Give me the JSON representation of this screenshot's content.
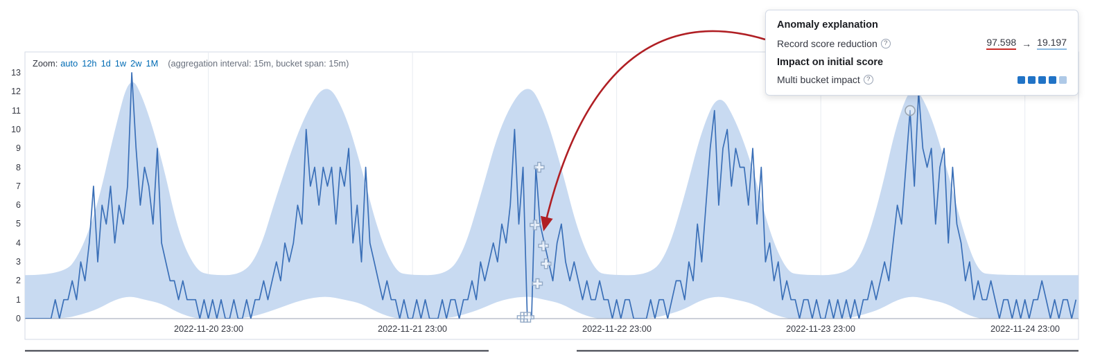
{
  "toolbar": {
    "zoom_label": "Zoom:",
    "zoom_options": [
      "auto",
      "12h",
      "1d",
      "1w",
      "2w",
      "1M"
    ],
    "aggregation_note": "(aggregation interval: 15m, bucket span: 15m)",
    "link_color": "#006bb4"
  },
  "popup": {
    "title": "Anomaly explanation",
    "help_glyph": "?",
    "record_score": {
      "label": "Record score reduction",
      "from": "97.598",
      "arrow": "→",
      "to": "19.197",
      "from_underline_color": "#ca2b27",
      "to_underline_color": "#8bbbe3"
    },
    "impact_title": "Impact on initial score",
    "multi_bucket": {
      "label": "Multi bucket impact",
      "filled": 4,
      "total": 5,
      "filled_color": "#2173c6",
      "empty_color": "#aec9e7"
    }
  },
  "chart_data": {
    "type": "line",
    "title": "",
    "xlabel": "",
    "ylabel": "",
    "ylim": [
      0,
      13
    ],
    "grid": "vertical",
    "legend": "none",
    "y_ticks": [
      0,
      1,
      2,
      3,
      4,
      5,
      6,
      7,
      8,
      9,
      10,
      11,
      12,
      13
    ],
    "x_ticks": [
      {
        "hour": 22,
        "label": "2022-11-20 23:00"
      },
      {
        "hour": 46,
        "label": "2022-11-21 23:00"
      },
      {
        "hour": 70,
        "label": "2022-11-22 23:00"
      },
      {
        "hour": 94,
        "label": "2022-11-23 23:00"
      },
      {
        "hour": 118,
        "label": "2022-11-24 23:00"
      }
    ],
    "x_domain_hours": [
      0.44,
      124.3
    ],
    "series": [
      {
        "name": "actual",
        "type": "line",
        "color": "#3a6fb7",
        "start_hour": 0.5,
        "interval_hours": 0.5,
        "values": [
          0,
          0,
          0,
          0,
          0,
          0,
          0,
          1,
          0,
          1,
          1,
          2,
          1,
          3,
          2,
          4,
          7,
          3,
          6,
          5,
          7,
          4,
          6,
          5,
          7,
          13,
          9,
          6,
          8,
          7,
          5,
          9,
          4,
          3,
          2,
          2,
          1,
          2,
          1,
          1,
          1,
          0,
          1,
          0,
          1,
          0,
          1,
          0,
          0,
          1,
          0,
          0,
          1,
          0,
          1,
          1,
          2,
          1,
          2,
          3,
          2,
          4,
          3,
          4,
          6,
          5,
          10,
          7,
          8,
          6,
          8,
          7,
          8,
          5,
          8,
          7,
          9,
          4,
          6,
          3,
          8,
          4,
          3,
          2,
          1,
          2,
          1,
          1,
          0,
          1,
          0,
          0,
          1,
          0,
          1,
          0,
          0,
          0,
          1,
          0,
          1,
          1,
          0,
          1,
          1,
          2,
          1,
          3,
          2,
          3,
          4,
          3,
          5,
          4,
          6,
          10,
          5,
          8,
          0,
          0,
          8,
          5,
          4,
          3,
          2,
          4,
          5,
          3,
          2,
          3,
          2,
          1,
          2,
          1,
          1,
          2,
          1,
          1,
          0,
          1,
          0,
          1,
          1,
          0,
          0,
          0,
          0,
          1,
          0,
          1,
          1,
          0,
          1,
          2,
          2,
          1,
          3,
          2,
          5,
          3,
          6,
          9,
          11,
          6,
          9,
          10,
          7,
          9,
          8,
          8,
          6,
          9,
          5,
          8,
          3,
          4,
          2,
          3,
          1,
          2,
          1,
          1,
          0,
          1,
          1,
          0,
          1,
          0,
          0,
          1,
          0,
          1,
          0,
          1,
          0,
          1,
          0,
          1,
          1,
          2,
          1,
          2,
          3,
          2,
          4,
          6,
          5,
          8,
          11,
          7,
          12,
          9,
          8,
          9,
          5,
          8,
          9,
          4,
          8,
          5,
          4,
          2,
          3,
          1,
          2,
          1,
          1,
          2,
          1,
          0,
          1,
          1,
          0,
          1,
          0,
          1,
          0,
          1,
          1,
          2,
          1,
          0,
          1,
          0,
          1,
          1,
          0,
          1,
          2
        ]
      },
      {
        "name": "model-bounds",
        "type": "band",
        "fill": "#c8daf1",
        "anchors": [
          [
            0.44,
            0,
            2.3
          ],
          [
            5,
            0,
            2.3
          ],
          [
            7,
            0.2,
            3.5
          ],
          [
            9,
            0.5,
            6
          ],
          [
            11,
            1,
            10
          ],
          [
            12.8,
            1.2,
            13
          ],
          [
            14.5,
            1,
            11.5
          ],
          [
            16.5,
            0.8,
            8.5
          ],
          [
            18.5,
            0.3,
            4.5
          ],
          [
            20.5,
            0,
            2.6
          ],
          [
            22,
            0,
            2.3
          ],
          [
            26,
            0,
            2.3
          ],
          [
            28,
            0.2,
            3.5
          ],
          [
            30,
            0.5,
            6.5
          ],
          [
            33,
            1,
            10.5
          ],
          [
            35.8,
            1.2,
            12.6
          ],
          [
            38,
            1,
            11
          ],
          [
            40,
            0.8,
            8
          ],
          [
            42,
            0.3,
            4.5
          ],
          [
            44,
            0,
            2.5
          ],
          [
            45.5,
            0,
            2.3
          ],
          [
            50,
            0,
            2.3
          ],
          [
            52,
            0.2,
            3.5
          ],
          [
            54,
            0.5,
            6.5
          ],
          [
            56.5,
            1,
            10.5
          ],
          [
            59.5,
            1.2,
            12.6
          ],
          [
            61.5,
            1,
            11
          ],
          [
            63.5,
            0.8,
            8
          ],
          [
            65.5,
            0.3,
            4.5
          ],
          [
            67.5,
            0,
            2.5
          ],
          [
            69,
            0,
            2.3
          ],
          [
            74,
            0,
            2.3
          ],
          [
            76,
            0.2,
            3.5
          ],
          [
            78,
            0.5,
            6.5
          ],
          [
            80,
            1,
            10
          ],
          [
            82,
            1.2,
            12
          ],
          [
            84,
            1,
            10.5
          ],
          [
            86,
            0.8,
            8
          ],
          [
            88,
            0.3,
            4.5
          ],
          [
            90,
            0,
            2.5
          ],
          [
            91.5,
            0,
            2.3
          ],
          [
            97,
            0,
            2.3
          ],
          [
            99,
            0.2,
            3.5
          ],
          [
            101,
            0.5,
            6.5
          ],
          [
            103,
            1,
            10.5
          ],
          [
            104.8,
            1.2,
            12.5
          ],
          [
            106.8,
            1,
            11
          ],
          [
            108.8,
            0.8,
            8
          ],
          [
            110.8,
            0.3,
            4.5
          ],
          [
            112.5,
            0,
            2.5
          ],
          [
            114,
            0,
            2.3
          ],
          [
            124.3,
            0,
            2.3
          ]
        ]
      }
    ],
    "annotations": {
      "multi_bucket_markers": {
        "shape": "cross",
        "color": "#92a9c6",
        "points": [
          [
            60.9,
            8
          ],
          [
            60.4,
            4.95
          ],
          [
            61.4,
            3.85
          ],
          [
            61.7,
            2.9
          ],
          [
            60.7,
            1.85
          ],
          [
            58.9,
            0.07
          ],
          [
            59.3,
            0.07
          ],
          [
            59.7,
            0.07
          ]
        ]
      },
      "anomaly_circle": {
        "point": [
          104.5,
          11
        ],
        "color": "#9aa5b1"
      },
      "explanation_arrow": {
        "color": "#b01f24",
        "target": [
          61.5,
          4.8
        ]
      }
    }
  }
}
